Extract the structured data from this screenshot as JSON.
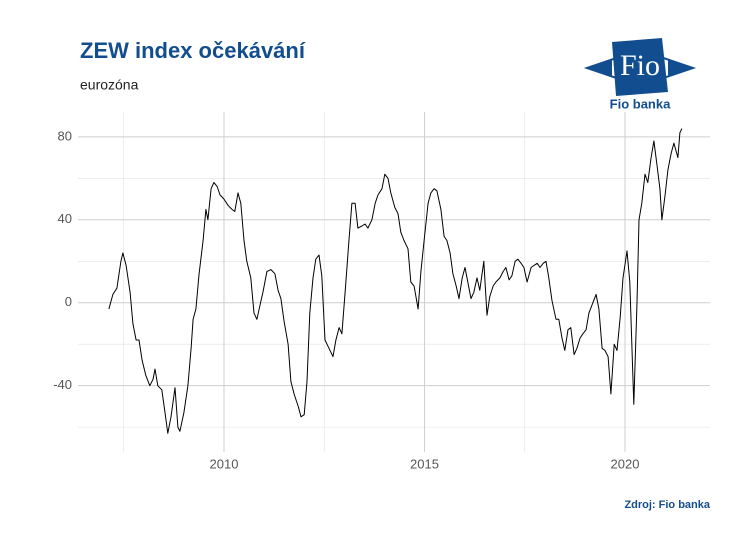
{
  "chart_data": {
    "type": "line",
    "title": "ZEW index očekávání",
    "subtitle": "eurozóna",
    "source": "Zdroj: Fio banka",
    "logo_text": "Fio",
    "logo_caption": "Fio banka",
    "xlim": [
      2006.36,
      2022.12
    ],
    "ylim": [
      -72,
      92
    ],
    "xticks": [
      2010,
      2015,
      2020
    ],
    "yticks": [
      -40,
      0,
      40,
      80
    ],
    "x_minor_ticks": [
      2007.5,
      2012.5,
      2017.5
    ],
    "y_minor_ticks": [
      -60,
      -20,
      20,
      60
    ],
    "grid": true,
    "series": [
      {
        "color": "#000000",
        "x": [
          2007.13,
          2007.23,
          2007.33,
          2007.43,
          2007.48,
          2007.56,
          2007.66,
          2007.73,
          2007.81,
          2007.88,
          2007.96,
          2008.05,
          2008.15,
          2008.23,
          2008.28,
          2008.35,
          2008.45,
          2008.53,
          2008.6,
          2008.68,
          2008.78,
          2008.85,
          2008.9,
          2009.0,
          2009.1,
          2009.18,
          2009.23,
          2009.3,
          2009.38,
          2009.48,
          2009.55,
          2009.6,
          2009.68,
          2009.75,
          2009.83,
          2009.9,
          2010.0,
          2010.1,
          2010.2,
          2010.27,
          2010.35,
          2010.42,
          2010.5,
          2010.57,
          2010.67,
          2010.75,
          2010.82,
          2010.9,
          2010.97,
          2011.07,
          2011.17,
          2011.27,
          2011.35,
          2011.42,
          2011.5,
          2011.6,
          2011.67,
          2011.75,
          2011.85,
          2011.92,
          2012.0,
          2012.07,
          2012.14,
          2012.22,
          2012.29,
          2012.37,
          2012.44,
          2012.52,
          2012.62,
          2012.72,
          2012.79,
          2012.87,
          2012.94,
          2013.02,
          2013.12,
          2013.19,
          2013.27,
          2013.34,
          2013.44,
          2013.52,
          2013.59,
          2013.69,
          2013.77,
          2013.84,
          2013.94,
          2014.01,
          2014.09,
          2014.16,
          2014.26,
          2014.34,
          2014.41,
          2014.49,
          2014.59,
          2014.66,
          2014.74,
          2014.84,
          2014.91,
          2014.99,
          2015.09,
          2015.16,
          2015.24,
          2015.31,
          2015.41,
          2015.49,
          2015.56,
          2015.64,
          2015.71,
          2015.79,
          2015.86,
          2015.94,
          2016.01,
          2016.08,
          2016.16,
          2016.23,
          2016.31,
          2016.38,
          2016.48,
          2016.56,
          2016.63,
          2016.71,
          2016.78,
          2016.88,
          2016.96,
          2017.03,
          2017.11,
          2017.18,
          2017.26,
          2017.33,
          2017.41,
          2017.48,
          2017.56,
          2017.66,
          2017.73,
          2017.81,
          2017.88,
          2017.96,
          2018.03,
          2018.1,
          2018.18,
          2018.28,
          2018.35,
          2018.43,
          2018.5,
          2018.58,
          2018.65,
          2018.73,
          2018.8,
          2018.88,
          2018.95,
          2019.03,
          2019.1,
          2019.2,
          2019.28,
          2019.35,
          2019.43,
          2019.5,
          2019.58,
          2019.65,
          2019.73,
          2019.8,
          2019.88,
          2019.95,
          2020.05,
          2020.12,
          2020.22,
          2020.3,
          2020.35,
          2020.42,
          2020.5,
          2020.57,
          2020.65,
          2020.72,
          2020.8,
          2020.87,
          2020.92,
          2021.0,
          2021.07,
          2021.15,
          2021.22,
          2021.32,
          2021.37,
          2021.42
        ],
        "values": [
          -3,
          4,
          7,
          20,
          24,
          18,
          5,
          -10,
          -18,
          -18,
          -28,
          -35,
          -40,
          -37,
          -32,
          -40,
          -42,
          -53,
          -63,
          -55,
          -41,
          -60,
          -62,
          -53,
          -40,
          -22,
          -8,
          -3,
          14,
          30,
          45,
          40,
          55,
          58,
          56,
          52,
          50,
          47,
          45,
          44,
          53,
          48,
          30,
          20,
          12,
          -5,
          -8,
          -1,
          5,
          15,
          16,
          14,
          6,
          2,
          -9,
          -20,
          -38,
          -44,
          -50,
          -55,
          -54,
          -38,
          -5,
          12,
          21,
          23,
          13,
          -18,
          -22,
          -26,
          -18,
          -12,
          -15,
          5,
          31,
          48,
          48,
          36,
          37,
          38,
          36,
          40,
          48,
          52,
          55,
          62,
          60,
          53,
          46,
          43,
          34,
          30,
          26,
          10,
          8,
          -3,
          15,
          30,
          48,
          53,
          55,
          54,
          45,
          32,
          30,
          24,
          14,
          8,
          2,
          12,
          17,
          10,
          2,
          5,
          12,
          6,
          20,
          -6,
          3,
          8,
          10,
          12,
          15,
          17,
          11,
          13,
          20,
          21,
          19,
          17,
          10,
          17,
          18,
          19,
          17,
          19,
          20,
          12,
          1,
          -8,
          -8,
          -17,
          -23,
          -13,
          -12,
          -25,
          -22,
          -17,
          -15,
          -13,
          -5,
          0,
          4,
          -3,
          -22,
          -23,
          -26,
          -44,
          -20,
          -23,
          -7,
          12,
          25,
          10,
          -49,
          0,
          40,
          48,
          62,
          58,
          70,
          78,
          66,
          55,
          40,
          52,
          64,
          72,
          77,
          70,
          82,
          84
        ]
      }
    ]
  }
}
